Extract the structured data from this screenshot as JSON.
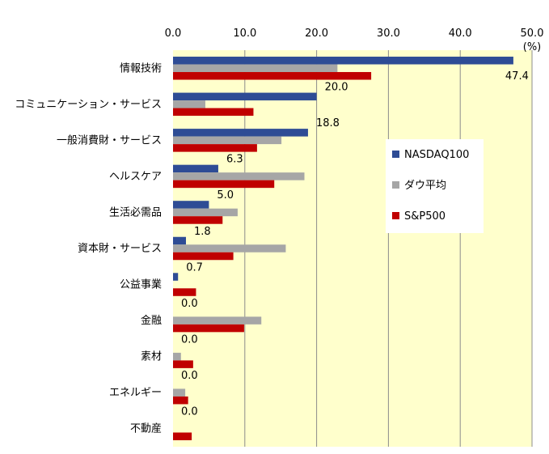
{
  "chart_data": {
    "type": "bar",
    "orientation": "horizontal",
    "unit_label": "(%)",
    "xlim": [
      0,
      50
    ],
    "x_ticks": [
      "0.0",
      "10.0",
      "20.0",
      "30.0",
      "40.0",
      "50.0"
    ],
    "x_tick_values": [
      0,
      10,
      20,
      30,
      40,
      50
    ],
    "categories": [
      "情報技術",
      "コミュニケーション・サービス",
      "一般消費財・サービス",
      "ヘルスケア",
      "生活必需品",
      "資本財・サービス",
      "公益事業",
      "金融",
      "素材",
      "エネルギー",
      "不動産"
    ],
    "series": [
      {
        "name": "NASDAQ100",
        "color": "#2E4C95",
        "values": [
          47.4,
          20.0,
          18.8,
          6.3,
          5.0,
          1.8,
          0.7,
          0.0,
          0.0,
          0.0,
          0.0
        ],
        "labels": [
          "47.4",
          "20.0",
          "18.8",
          "6.3",
          "5.0",
          "1.8",
          "0.7",
          "0.0",
          "0.0",
          "0.0",
          "0.0"
        ]
      },
      {
        "name": "ダウ平均",
        "color": "#A6A6A6",
        "values": [
          22.9,
          4.5,
          15.1,
          18.3,
          9.0,
          15.7,
          0.0,
          12.3,
          1.1,
          1.7,
          0.0
        ]
      },
      {
        "name": "S&P500",
        "color": "#C00000",
        "values": [
          27.6,
          11.2,
          11.7,
          14.1,
          6.9,
          8.4,
          3.2,
          9.9,
          2.8,
          2.1,
          2.6
        ]
      }
    ],
    "grid": true,
    "plot_background": "#FFFFCC",
    "legend_position": "right"
  }
}
